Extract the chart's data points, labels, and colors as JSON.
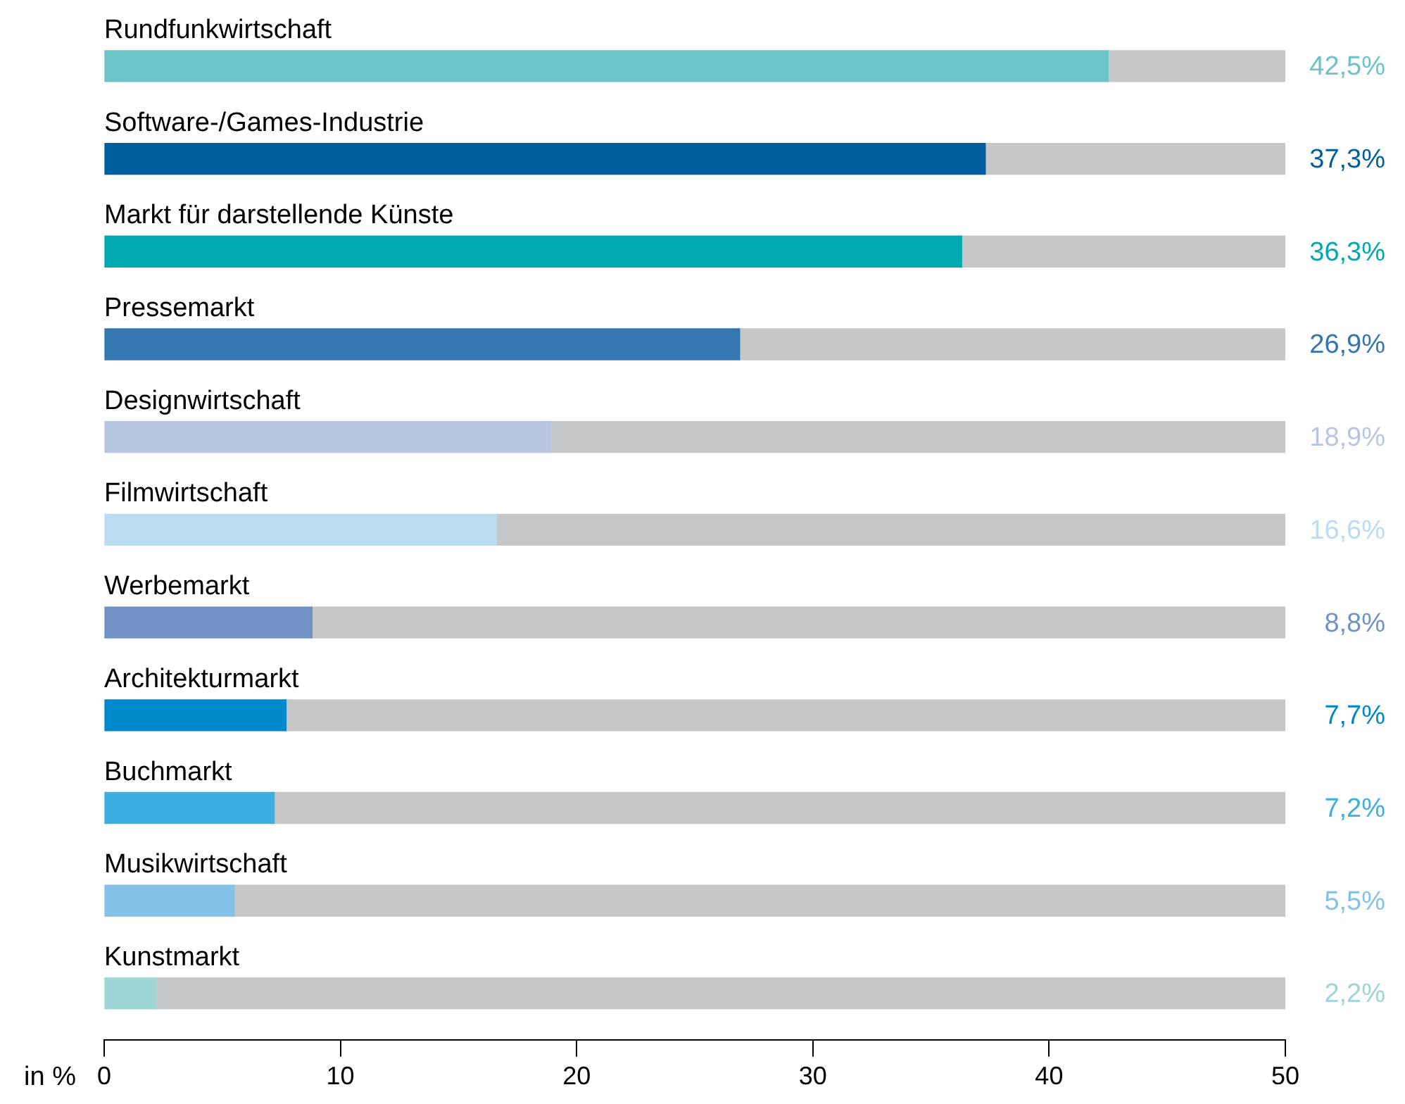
{
  "chart_data": {
    "type": "bar",
    "orientation": "horizontal",
    "stacked": true,
    "xlabel": "in %",
    "categories": [
      "Rundfunkwirtschaft",
      "Software-/Games-Industrie",
      "Markt für darstellende Künste",
      "Pressemarkt",
      "Designwirtschaft",
      "Filmwirtschaft",
      "Werbemarkt",
      "Architekturmarkt",
      "Buchmarkt",
      "Musikwirtschaft",
      "Kunstmarkt"
    ],
    "series": [
      {
        "colors": [
          "#6bc4c8",
          "#005e9e",
          "#00a8b0",
          "#3477b0",
          "#b8c6e0",
          "#bcdcf2",
          "#7092c4",
          "#0088cc",
          "#3caee0",
          "#84c2ea",
          "#9ed6d6"
        ],
        "values": [
          42.5,
          37.3,
          36.3,
          26.9,
          18.9,
          16.6,
          8.8,
          7.7,
          7.2,
          5.5,
          2.2
        ],
        "value_labels": [
          "42,5%",
          "37,3%",
          "36,3%",
          "26,9%",
          "18,9%",
          "16,6%",
          "8,8%",
          "7,7%",
          "7,2%",
          "5,5%",
          "2,2%"
        ]
      },
      {
        "color": "#c6c7c9",
        "values": [
          7.5,
          12.7,
          13.7,
          23.1,
          31.1,
          33.4,
          41.2,
          42.3,
          42.8,
          44.5,
          47.8
        ]
      }
    ],
    "xlim": [
      0,
      50
    ],
    "xticks": [
      0,
      10,
      20,
      30,
      40,
      50
    ],
    "grid": false,
    "legend": false
  }
}
